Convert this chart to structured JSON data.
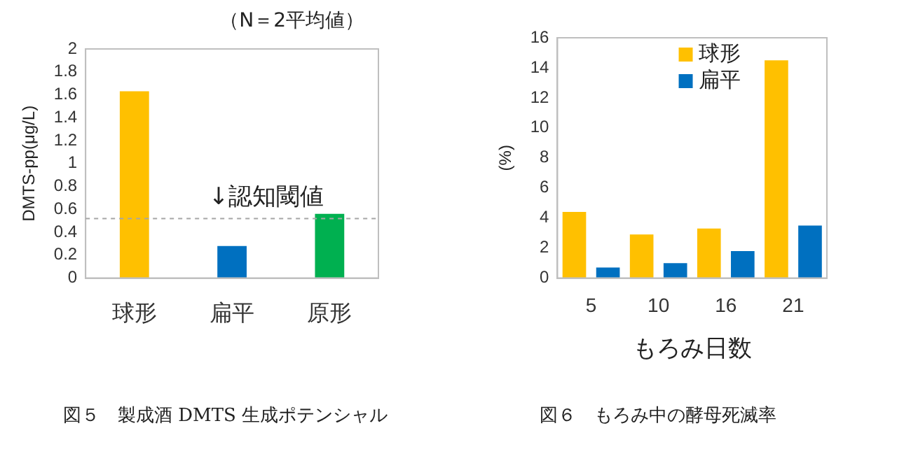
{
  "chart_data": [
    {
      "type": "bar",
      "title": "図５　製成酒 DMTS 生成ポテンシャル",
      "ylabel": "DMTS-pp(μg/L)",
      "categories": [
        "球形",
        "扁平",
        "原形"
      ],
      "values": [
        1.63,
        0.28,
        0.56
      ],
      "colors": [
        "#ffc000",
        "#0070c0",
        "#00b050"
      ],
      "ylim": [
        0,
        2
      ],
      "yticks": [
        0,
        0.2,
        0.4,
        0.6,
        0.8,
        1,
        1.2,
        1.4,
        1.6,
        1.8,
        2
      ],
      "grid": false,
      "legend": false,
      "annotations": [
        "（N＝2平均値）"
      ],
      "ref_lines": [
        {
          "axis": "y",
          "value": 0.52,
          "label": "↓認知閾値",
          "color": "#a6a6a6",
          "line_style": "dashed"
        }
      ]
    },
    {
      "type": "bar",
      "title": "図６　もろみ中の酵母死滅率",
      "ylabel": "(%)",
      "xlabel": "もろみ日数",
      "categories": [
        "5",
        "10",
        "16",
        "21"
      ],
      "ylim": [
        0,
        16
      ],
      "yticks": [
        0,
        2,
        4,
        6,
        8,
        10,
        12,
        14,
        16
      ],
      "grid": false,
      "legend": "top",
      "series": [
        {
          "name": "球形",
          "color": "#ffc000",
          "values": [
            4.4,
            2.9,
            3.3,
            14.5
          ]
        },
        {
          "name": "扁平",
          "color": "#0070c0",
          "values": [
            0.7,
            1.0,
            1.8,
            3.5
          ]
        }
      ]
    }
  ]
}
